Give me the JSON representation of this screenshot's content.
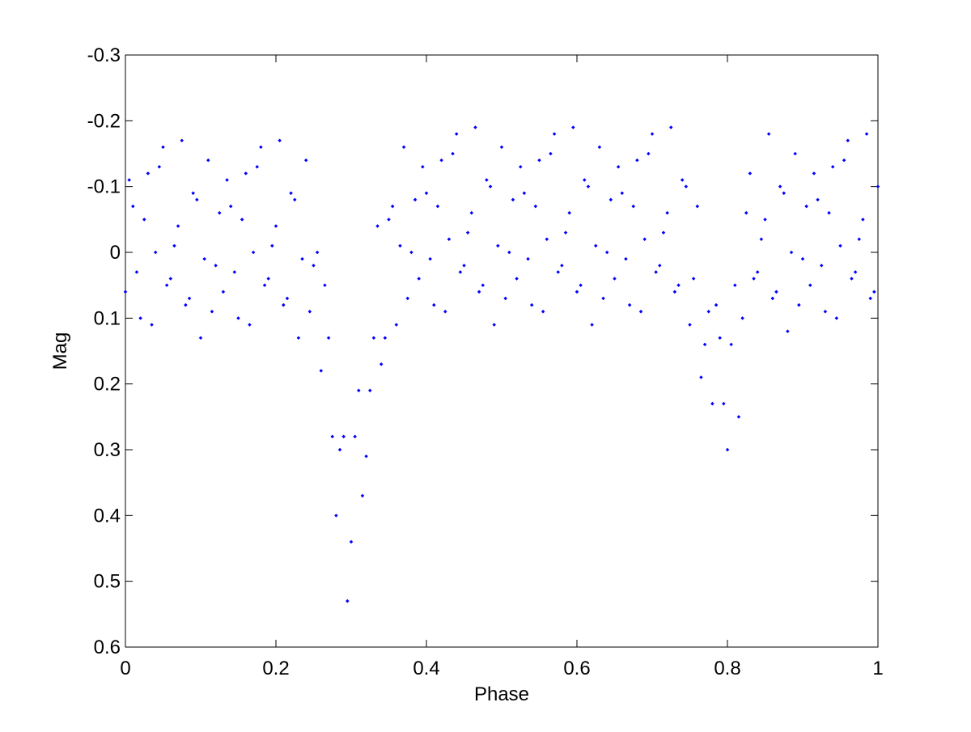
{
  "chart_data": {
    "type": "scatter",
    "x_label": "Phase",
    "y_label": "Mag",
    "xlim": [
      0,
      1
    ],
    "xticks": [
      0,
      0.2,
      0.4,
      0.6,
      0.8,
      1
    ],
    "ylim": [
      -0.3,
      0.6
    ],
    "yticks": [
      -0.3,
      -0.2,
      -0.1,
      0,
      0.1,
      0.2,
      0.3,
      0.4,
      0.5,
      0.6
    ],
    "y_reversed": true,
    "grid": false,
    "color": "#0000ff",
    "x": [
      0,
      0.01,
      0.02,
      0.03,
      0.04,
      0.05,
      0.06,
      0.07,
      0.08,
      0.09,
      0.1,
      0.11,
      0.12,
      0.13,
      0.14,
      0.15,
      0.16,
      0.17,
      0.18,
      0.19,
      0.2,
      0.21,
      0.22,
      0.23,
      0.24,
      0.25,
      0.26,
      0.27,
      0.28,
      0.29,
      0.3,
      0.31,
      0.32,
      0.33,
      0.34,
      0.35,
      0.36,
      0.37,
      0.38,
      0.39,
      0.4,
      0.41,
      0.42,
      0.43,
      0.44,
      0.45,
      0.46,
      0.47,
      0.48,
      0.49,
      0.5,
      0.51,
      0.52,
      0.53,
      0.54,
      0.55,
      0.56,
      0.57,
      0.58,
      0.59,
      0.6,
      0.61,
      0.62,
      0.63,
      0.64,
      0.65,
      0.66,
      0.67,
      0.68,
      0.69,
      0.7,
      0.71,
      0.72,
      0.73,
      0.74,
      0.75,
      0.76,
      0.77,
      0.78,
      0.79,
      0.8,
      0.81,
      0.82,
      0.83,
      0.84,
      0.85,
      0.86,
      0.87,
      0.88,
      0.89,
      0.9,
      0.91,
      0.92,
      0.93,
      0.94,
      0.95,
      0.96,
      0.97,
      0.98,
      0.99,
      1,
      0.005,
      0.015,
      0.025,
      0.035,
      0.045,
      0.055,
      0.065,
      0.075,
      0.085,
      0.095,
      0.105,
      0.115,
      0.125,
      0.135,
      0.145,
      0.155,
      0.165,
      0.175,
      0.185,
      0.195,
      0.205,
      0.215,
      0.225,
      0.235,
      0.245,
      0.255,
      0.265,
      0.275,
      0.285,
      0.295,
      0.305,
      0.315,
      0.325,
      0.335,
      0.345,
      0.355,
      0.365,
      0.375,
      0.385,
      0.395,
      0.405,
      0.415,
      0.425,
      0.435,
      0.445,
      0.455,
      0.465,
      0.475,
      0.485,
      0.495,
      0.505,
      0.515,
      0.525,
      0.535,
      0.545,
      0.555,
      0.565,
      0.575,
      0.585,
      0.595,
      0.605,
      0.615,
      0.625,
      0.635,
      0.645,
      0.655,
      0.665,
      0.675,
      0.685,
      0.695,
      0.705,
      0.715,
      0.725,
      0.735,
      0.745,
      0.755,
      0.765,
      0.775,
      0.785,
      0.795,
      0.805,
      0.815,
      0.825,
      0.835,
      0.845,
      0.855,
      0.865,
      0.875,
      0.885,
      0.895,
      0.905,
      0.915,
      0.925,
      0.935,
      0.945,
      0.955,
      0.965,
      0.975,
      0.985,
      0.995
    ],
    "values": [
      0.06,
      -0.07,
      0.1,
      -0.12,
      0,
      -0.16,
      0.04,
      -0.04,
      0.08,
      -0.09,
      0.13,
      -0.14,
      0.02,
      0.06,
      -0.07,
      0.1,
      -0.12,
      0,
      -0.16,
      0.04,
      -0.04,
      0.08,
      -0.09,
      0.13,
      -0.14,
      0.02,
      0.18,
      0.13,
      0.4,
      0.28,
      0.44,
      0.21,
      0.31,
      0.13,
      0.17,
      -0.05,
      0.11,
      -0.16,
      0,
      0.04,
      -0.09,
      0.08,
      -0.14,
      -0.02,
      -0.18,
      0.02,
      -0.06,
      0.06,
      -0.11,
      0.11,
      -0.16,
      0,
      0.04,
      -0.09,
      0.08,
      -0.14,
      -0.02,
      -0.18,
      0.02,
      -0.06,
      0.06,
      -0.11,
      0.11,
      -0.16,
      0,
      0.04,
      -0.09,
      0.08,
      -0.14,
      -0.02,
      -0.18,
      0.02,
      -0.06,
      0.06,
      -0.11,
      0.11,
      -0.07,
      0.14,
      0.23,
      0.13,
      0.3,
      0.05,
      0.1,
      -0.12,
      0.03,
      -0.05,
      0.07,
      -0.1,
      0.12,
      -0.15,
      0.01,
      0.05,
      -0.08,
      0.09,
      -0.13,
      -0.01,
      -0.17,
      0.03,
      -0.05,
      0.07,
      -0.1,
      -0.11,
      0.03,
      -0.05,
      0.11,
      -0.13,
      0.05,
      -0.01,
      -0.17,
      0.07,
      -0.08,
      0.01,
      0.09,
      -0.06,
      -0.11,
      0.03,
      -0.05,
      0.11,
      -0.13,
      0.05,
      -0.01,
      -0.17,
      0.07,
      -0.08,
      0.01,
      0.09,
      0,
      0.05,
      0.28,
      0.3,
      0.53,
      0.28,
      0.37,
      0.21,
      -0.04,
      0.13,
      -0.07,
      -0.01,
      0.07,
      -0.08,
      -0.13,
      0.01,
      -0.07,
      0.09,
      -0.15,
      0.03,
      -0.03,
      -0.19,
      0.05,
      -0.1,
      -0.01,
      0.07,
      -0.08,
      -0.13,
      0.01,
      -0.07,
      0.09,
      -0.15,
      0.03,
      -0.03,
      -0.19,
      0.05,
      -0.1,
      -0.01,
      0.07,
      -0.08,
      -0.13,
      0.01,
      -0.07,
      0.09,
      -0.15,
      0.03,
      -0.03,
      -0.19,
      0.05,
      -0.1,
      0.04,
      0.19,
      0.09,
      0.08,
      0.23,
      0.14,
      0.25,
      -0.06,
      0.04,
      -0.02,
      -0.18,
      0.06,
      -0.09,
      0,
      0.08,
      -0.07,
      -0.12,
      0.02,
      -0.06,
      0.1,
      -0.14,
      0.04,
      -0.02,
      -0.18,
      0.06
    ]
  }
}
